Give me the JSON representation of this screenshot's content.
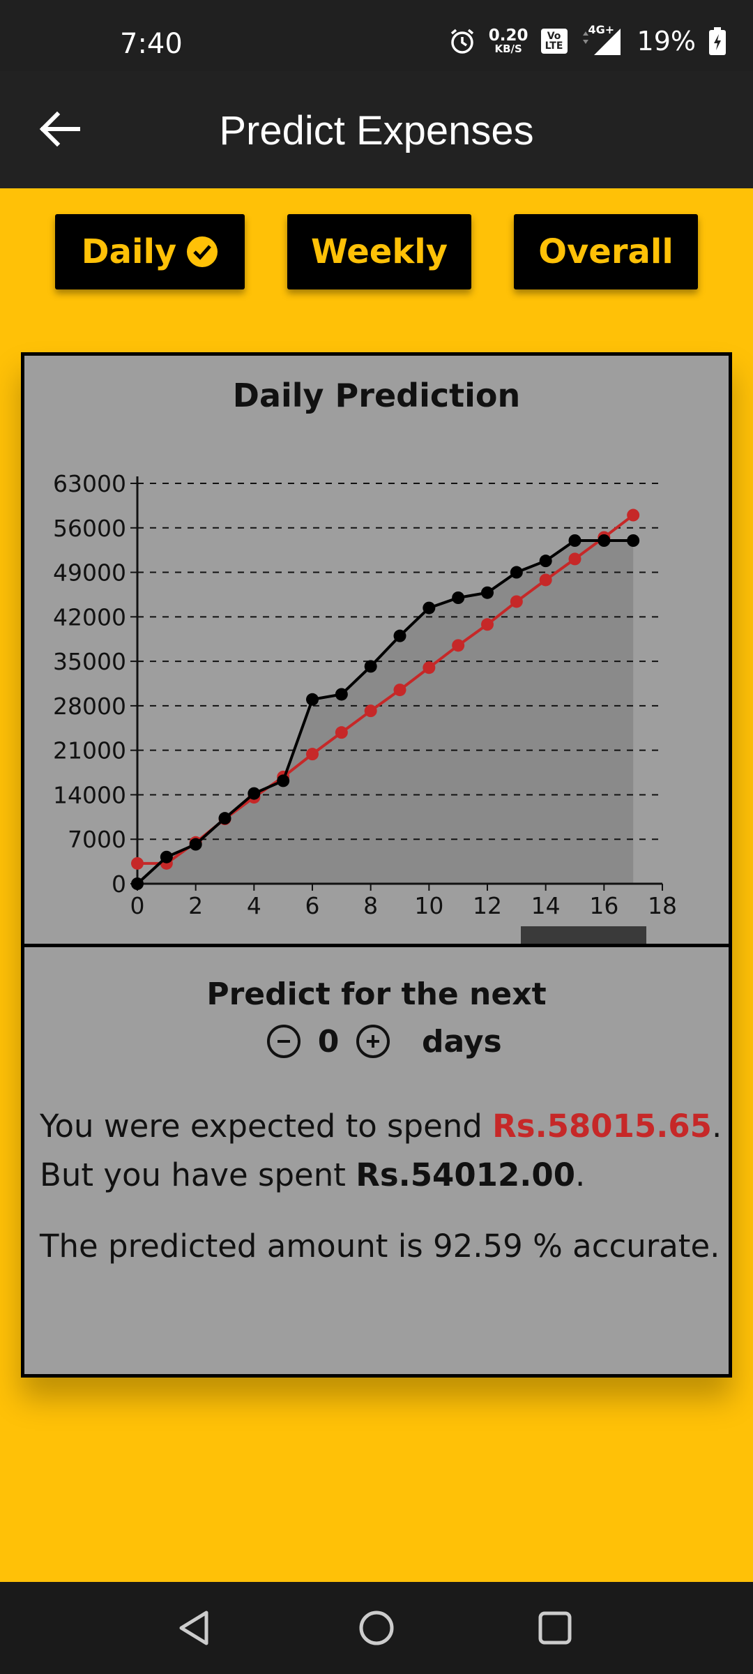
{
  "status": {
    "time": "7:40",
    "net_speed_value": "0.20",
    "net_speed_unit": "KB/S",
    "volte_top": "Vo",
    "volte_bottom": "LTE",
    "network": "4G+",
    "battery": "19%"
  },
  "appbar": {
    "title": "Predict Expenses",
    "back_icon": "arrow-left-icon"
  },
  "tabs": [
    {
      "label": "Daily",
      "selected": true,
      "icon": "check-circle-icon"
    },
    {
      "label": "Weekly",
      "selected": false
    },
    {
      "label": "Overall",
      "selected": false
    }
  ],
  "chart_data": {
    "type": "line",
    "title": "Daily Prediction",
    "xlabel": "",
    "ylabel": "",
    "xlim": [
      0,
      18
    ],
    "ylim": [
      0,
      63000
    ],
    "x_ticks": [
      0,
      2,
      4,
      6,
      8,
      10,
      12,
      14,
      16,
      18
    ],
    "y_ticks": [
      0,
      7000,
      14000,
      21000,
      28000,
      35000,
      42000,
      49000,
      56000,
      63000
    ],
    "grid": "horizontal-dashed",
    "series": [
      {
        "color": "#C62828",
        "x": [
          0,
          1,
          2,
          3,
          4,
          5,
          6,
          7,
          8,
          9,
          10,
          11,
          12,
          13,
          14,
          15,
          16,
          17
        ],
        "values": [
          3200,
          3200,
          6500,
          10200,
          13600,
          16800,
          20400,
          23800,
          27200,
          30500,
          34000,
          37500,
          40800,
          44400,
          47800,
          51100,
          54500,
          58000
        ]
      },
      {
        "color": "#000000",
        "fill": true,
        "x": [
          0,
          1,
          2,
          3,
          4,
          5,
          6,
          7,
          8,
          9,
          10,
          11,
          12,
          13,
          14,
          15,
          16,
          17
        ],
        "values": [
          0,
          4200,
          6200,
          10300,
          14200,
          16200,
          29000,
          29800,
          34200,
          39000,
          43400,
          45000,
          45800,
          49000,
          50800,
          54000,
          54000,
          54000
        ]
      }
    ]
  },
  "predict": {
    "label": "Predict for the next",
    "value": "0",
    "unit": "days",
    "minus_icon": "minus-circle-icon",
    "plus_icon": "plus-circle-icon"
  },
  "result": {
    "expected_prefix": "You were expected to spend ",
    "expected_amount": "Rs.58015.65",
    "expected_suffix": ".",
    "spent_prefix": "But you have spent ",
    "spent_amount": "Rs.54012.00",
    "spent_suffix": ".",
    "accuracy_text": "The predicted amount is 92.59 % accurate."
  },
  "navbar": {
    "back_icon": "triangle-back-icon",
    "home_icon": "circle-home-icon",
    "recents_icon": "square-recents-icon"
  },
  "colors": {
    "accent": "#FFC107",
    "dark": "#222222",
    "expected": "#C62828",
    "card": "#9E9E9E"
  }
}
